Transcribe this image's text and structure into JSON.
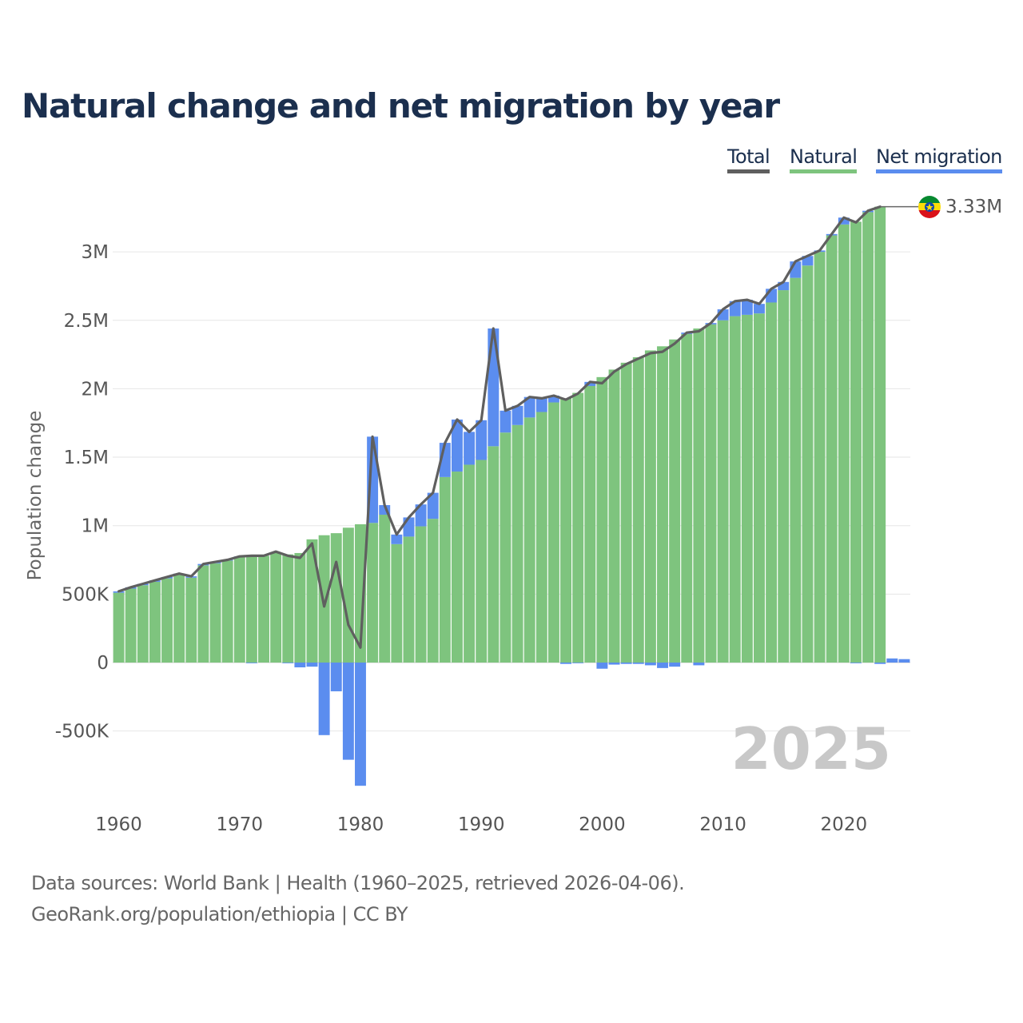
{
  "title": "Natural change and net migration by year",
  "legend": {
    "total": {
      "label": "Total",
      "color": "#5f5f5f"
    },
    "natural": {
      "label": "Natural",
      "color": "#7ec47e"
    },
    "net": {
      "label": "Net migration",
      "color": "#5b8def"
    }
  },
  "current_year": "2025",
  "current_value_label": "3.33M",
  "flag_icon": "ethiopia-flag-icon",
  "footer": {
    "line1": "Data sources: World Bank | Health (1960–2025, retrieved 2026-04-06).",
    "line2": "GeoRank.org/population/ethiopia | CC BY"
  },
  "chart_data": {
    "type": "bar",
    "stacked": true,
    "title": "Natural change and net migration by year",
    "xlabel": "",
    "ylabel": "Population change",
    "xlim": [
      1960,
      2025
    ],
    "ylim": [
      -1000000,
      3400000
    ],
    "yticks": [
      -500000,
      0,
      500000,
      1000000,
      1500000,
      2000000,
      2500000,
      3000000
    ],
    "ytick_labels": [
      "-500K",
      "0",
      "500K",
      "1M",
      "1.5M",
      "2M",
      "2.5M",
      "3M"
    ],
    "xticks": [
      1960,
      1970,
      1980,
      1990,
      2000,
      2010,
      2020
    ],
    "xtick_labels": [
      "1960",
      "1970",
      "1980",
      "1990",
      "2000",
      "2010",
      "2020"
    ],
    "years": [
      1960,
      1961,
      1962,
      1963,
      1964,
      1965,
      1966,
      1967,
      1968,
      1969,
      1970,
      1971,
      1972,
      1973,
      1974,
      1975,
      1976,
      1977,
      1978,
      1979,
      1980,
      1981,
      1982,
      1983,
      1984,
      1985,
      1986,
      1987,
      1988,
      1989,
      1990,
      1991,
      1992,
      1993,
      1994,
      1995,
      1996,
      1997,
      1998,
      1999,
      2000,
      2001,
      2002,
      2003,
      2004,
      2005,
      2006,
      2007,
      2008,
      2009,
      2010,
      2011,
      2012,
      2013,
      2014,
      2015,
      2016,
      2017,
      2018,
      2019,
      2020,
      2021,
      2022,
      2023,
      2024,
      2025
    ],
    "series": [
      {
        "name": "Natural",
        "values": [
          510000,
          540000,
          565000,
          590000,
          615000,
          640000,
          620000,
          710000,
          725000,
          745000,
          770000,
          775000,
          780000,
          800000,
          790000,
          800000,
          900000,
          930000,
          945000,
          985000,
          1010000,
          1020000,
          1080000,
          865000,
          920000,
          995000,
          1050000,
          1355000,
          1395000,
          1445000,
          1480000,
          1580000,
          1680000,
          1735000,
          1790000,
          1830000,
          1900000,
          1930000,
          1970000,
          2020000,
          2085000,
          2140000,
          2190000,
          2230000,
          2280000,
          2310000,
          2360000,
          2400000,
          2440000,
          2470000,
          2500000,
          2530000,
          2540000,
          2550000,
          2630000,
          2720000,
          2810000,
          2900000,
          3000000,
          3120000,
          3200000,
          3220000,
          3290000,
          3330000,
          0,
          0
        ]
      },
      {
        "name": "Net migration",
        "values": [
          10000,
          10000,
          10000,
          10000,
          10000,
          10000,
          10000,
          10000,
          10000,
          5000,
          5000,
          -5000,
          0,
          0,
          -5000,
          -35000,
          -30000,
          -530000,
          -210000,
          -710000,
          -900000,
          630000,
          70000,
          70000,
          140000,
          160000,
          190000,
          250000,
          380000,
          240000,
          290000,
          860000,
          160000,
          140000,
          150000,
          100000,
          50000,
          -10000,
          -5000,
          30000,
          -45000,
          -15000,
          -10000,
          -10000,
          -20000,
          -40000,
          -30000,
          10000,
          -20000,
          10000,
          80000,
          110000,
          110000,
          70000,
          100000,
          60000,
          120000,
          70000,
          10000,
          10000,
          50000,
          -5000,
          10000,
          -10000,
          30000,
          25000
        ]
      },
      {
        "name": "Total",
        "values": [
          520000,
          550000,
          575000,
          600000,
          625000,
          650000,
          630000,
          720000,
          735000,
          750000,
          775000,
          780000,
          780000,
          810000,
          780000,
          765000,
          870000,
          410000,
          735000,
          275000,
          110000,
          1650000,
          1150000,
          935000,
          1060000,
          1155000,
          1240000,
          1605000,
          1775000,
          1685000,
          1770000,
          2440000,
          1840000,
          1875000,
          1940000,
          1930000,
          1950000,
          1920000,
          1965000,
          2050000,
          2040000,
          2125000,
          2180000,
          2220000,
          2260000,
          2270000,
          2330000,
          2410000,
          2420000,
          2480000,
          2580000,
          2640000,
          2650000,
          2620000,
          2730000,
          2780000,
          2930000,
          2970000,
          3010000,
          3130000,
          3250000,
          3215000,
          3300000,
          3330000,
          null,
          null
        ]
      }
    ]
  }
}
